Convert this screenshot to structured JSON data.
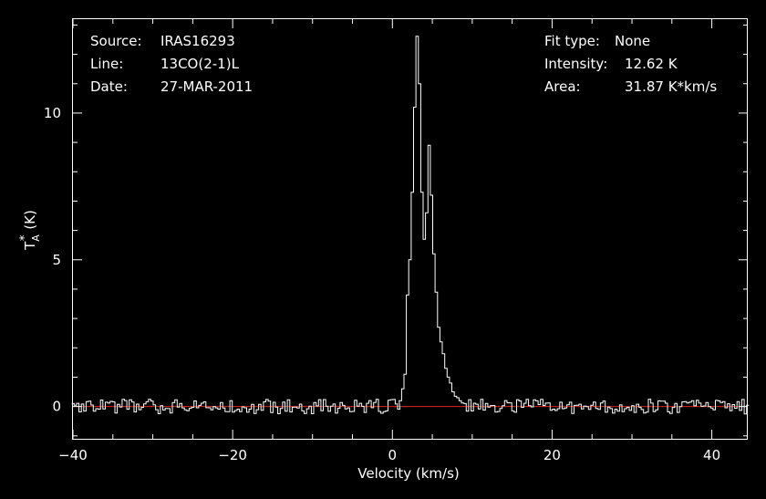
{
  "info": {
    "source_label": "Source:",
    "source_value": "IRAS16293",
    "line_label": "Line:",
    "line_value": "13CO(2-1)L",
    "date_label": "Date:",
    "date_value": "27-MAR-2011",
    "fit_label": "Fit type:",
    "fit_value": "None",
    "intensity_label": "Intensity:",
    "intensity_value": "12.62 K",
    "area_label": "Area:",
    "area_value": "31.87 K*km/s"
  },
  "colors": {
    "background": "#000000",
    "trace": "#ffffff",
    "baseline": "#e02020",
    "axes": "#ffffff"
  },
  "chart_data": {
    "type": "line",
    "step": true,
    "xlabel": "Velocity (km/s)",
    "ylabel_main": "T",
    "ylabel_sup": "*",
    "ylabel_sub": "A",
    "ylabel_unit": "(K)",
    "xlim": [
      -40,
      44.5
    ],
    "ylim": [
      -1.1,
      13.2
    ],
    "xticks": [
      -40,
      -20,
      0,
      20,
      40
    ],
    "xtick_labels": [
      "−40",
      "−20",
      "0",
      "20",
      "40"
    ],
    "yticks": [
      0,
      5,
      10
    ],
    "ytick_labels": [
      "0",
      "5",
      "10"
    ],
    "baseline": 0,
    "grid": false,
    "series": [
      {
        "x": [
          1.0,
          1.3,
          1.6,
          1.9,
          2.2,
          2.5,
          2.8,
          3.1,
          3.4,
          3.7,
          4.0,
          4.3,
          4.6,
          4.9,
          5.2,
          5.5,
          5.8,
          6.1,
          6.4,
          6.7,
          7.0,
          7.3,
          7.6,
          7.9,
          8.2,
          8.5,
          8.8,
          9.1
        ],
        "y": [
          0.2,
          0.6,
          1.1,
          3.8,
          5.0,
          7.3,
          10.2,
          12.62,
          11.0,
          7.3,
          5.7,
          6.6,
          8.9,
          7.2,
          5.2,
          3.9,
          2.7,
          2.2,
          1.8,
          1.3,
          1.0,
          0.8,
          0.5,
          0.35,
          0.3,
          0.2,
          0.12,
          0.1
        ]
      }
    ]
  }
}
